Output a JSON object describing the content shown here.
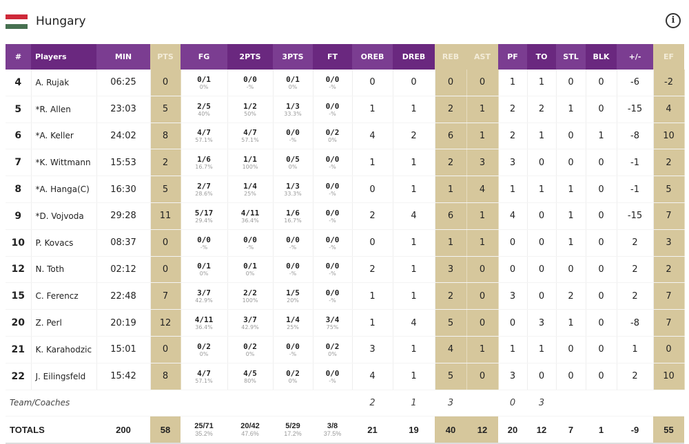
{
  "team": {
    "name": "Hungary",
    "flag_colors": [
      "#ce2939",
      "#ffffff",
      "#477050"
    ]
  },
  "columns": [
    "#",
    "Players",
    "MIN",
    "PTS",
    "FG",
    "2PTS",
    "3PTS",
    "FT",
    "OREB",
    "DREB",
    "REB",
    "AST",
    "PF",
    "TO",
    "STL",
    "BLK",
    "+/-",
    "EF"
  ],
  "players": [
    {
      "no": "4",
      "name": "A. Rujak",
      "min": "06:25",
      "pts": "0",
      "fg": [
        "0/1",
        "0%"
      ],
      "p2": [
        "0/0",
        "-%"
      ],
      "p3": [
        "0/1",
        "0%"
      ],
      "ft": [
        "0/0",
        "-%"
      ],
      "oreb": "0",
      "dreb": "0",
      "reb": "0",
      "ast": "0",
      "pf": "1",
      "to": "1",
      "stl": "0",
      "blk": "0",
      "pm": "-6",
      "ef": "-2"
    },
    {
      "no": "5",
      "name": "*R. Allen",
      "min": "23:03",
      "pts": "5",
      "fg": [
        "2/5",
        "40%"
      ],
      "p2": [
        "1/2",
        "50%"
      ],
      "p3": [
        "1/3",
        "33.3%"
      ],
      "ft": [
        "0/0",
        "-%"
      ],
      "oreb": "1",
      "dreb": "1",
      "reb": "2",
      "ast": "1",
      "pf": "2",
      "to": "2",
      "stl": "1",
      "blk": "0",
      "pm": "-15",
      "ef": "4"
    },
    {
      "no": "6",
      "name": "*A. Keller",
      "min": "24:02",
      "pts": "8",
      "fg": [
        "4/7",
        "57.1%"
      ],
      "p2": [
        "4/7",
        "57.1%"
      ],
      "p3": [
        "0/0",
        "-%"
      ],
      "ft": [
        "0/2",
        "0%"
      ],
      "oreb": "4",
      "dreb": "2",
      "reb": "6",
      "ast": "1",
      "pf": "2",
      "to": "1",
      "stl": "0",
      "blk": "1",
      "pm": "-8",
      "ef": "10"
    },
    {
      "no": "7",
      "name": "*K. Wittmann",
      "min": "15:53",
      "pts": "2",
      "fg": [
        "1/6",
        "16.7%"
      ],
      "p2": [
        "1/1",
        "100%"
      ],
      "p3": [
        "0/5",
        "0%"
      ],
      "ft": [
        "0/0",
        "-%"
      ],
      "oreb": "1",
      "dreb": "1",
      "reb": "2",
      "ast": "3",
      "pf": "3",
      "to": "0",
      "stl": "0",
      "blk": "0",
      "pm": "-1",
      "ef": "2"
    },
    {
      "no": "8",
      "name": "*A. Hanga(C)",
      "min": "16:30",
      "pts": "5",
      "fg": [
        "2/7",
        "28.6%"
      ],
      "p2": [
        "1/4",
        "25%"
      ],
      "p3": [
        "1/3",
        "33.3%"
      ],
      "ft": [
        "0/0",
        "-%"
      ],
      "oreb": "0",
      "dreb": "1",
      "reb": "1",
      "ast": "4",
      "pf": "1",
      "to": "1",
      "stl": "1",
      "blk": "0",
      "pm": "-1",
      "ef": "5"
    },
    {
      "no": "9",
      "name": "*D. Vojvoda",
      "min": "29:28",
      "pts": "11",
      "fg": [
        "5/17",
        "29.4%"
      ],
      "p2": [
        "4/11",
        "36.4%"
      ],
      "p3": [
        "1/6",
        "16.7%"
      ],
      "ft": [
        "0/0",
        "-%"
      ],
      "oreb": "2",
      "dreb": "4",
      "reb": "6",
      "ast": "1",
      "pf": "4",
      "to": "0",
      "stl": "1",
      "blk": "0",
      "pm": "-15",
      "ef": "7"
    },
    {
      "no": "10",
      "name": "P. Kovacs",
      "min": "08:37",
      "pts": "0",
      "fg": [
        "0/0",
        "-%"
      ],
      "p2": [
        "0/0",
        "-%"
      ],
      "p3": [
        "0/0",
        "-%"
      ],
      "ft": [
        "0/0",
        "-%"
      ],
      "oreb": "0",
      "dreb": "1",
      "reb": "1",
      "ast": "1",
      "pf": "0",
      "to": "0",
      "stl": "1",
      "blk": "0",
      "pm": "2",
      "ef": "3"
    },
    {
      "no": "12",
      "name": "N. Toth",
      "min": "02:12",
      "pts": "0",
      "fg": [
        "0/1",
        "0%"
      ],
      "p2": [
        "0/1",
        "0%"
      ],
      "p3": [
        "0/0",
        "-%"
      ],
      "ft": [
        "0/0",
        "-%"
      ],
      "oreb": "2",
      "dreb": "1",
      "reb": "3",
      "ast": "0",
      "pf": "0",
      "to": "0",
      "stl": "0",
      "blk": "0",
      "pm": "2",
      "ef": "2"
    },
    {
      "no": "15",
      "name": "C. Ferencz",
      "min": "22:48",
      "pts": "7",
      "fg": [
        "3/7",
        "42.9%"
      ],
      "p2": [
        "2/2",
        "100%"
      ],
      "p3": [
        "1/5",
        "20%"
      ],
      "ft": [
        "0/0",
        "-%"
      ],
      "oreb": "1",
      "dreb": "1",
      "reb": "2",
      "ast": "0",
      "pf": "3",
      "to": "0",
      "stl": "2",
      "blk": "0",
      "pm": "2",
      "ef": "7"
    },
    {
      "no": "20",
      "name": "Z. Perl",
      "min": "20:19",
      "pts": "12",
      "fg": [
        "4/11",
        "36.4%"
      ],
      "p2": [
        "3/7",
        "42.9%"
      ],
      "p3": [
        "1/4",
        "25%"
      ],
      "ft": [
        "3/4",
        "75%"
      ],
      "oreb": "1",
      "dreb": "4",
      "reb": "5",
      "ast": "0",
      "pf": "0",
      "to": "3",
      "stl": "1",
      "blk": "0",
      "pm": "-8",
      "ef": "7"
    },
    {
      "no": "21",
      "name": "K. Karahodzic",
      "min": "15:01",
      "pts": "0",
      "fg": [
        "0/2",
        "0%"
      ],
      "p2": [
        "0/2",
        "0%"
      ],
      "p3": [
        "0/0",
        "-%"
      ],
      "ft": [
        "0/2",
        "0%"
      ],
      "oreb": "3",
      "dreb": "1",
      "reb": "4",
      "ast": "1",
      "pf": "1",
      "to": "1",
      "stl": "0",
      "blk": "0",
      "pm": "1",
      "ef": "0"
    },
    {
      "no": "22",
      "name": "J. Eilingsfeld",
      "min": "15:42",
      "pts": "8",
      "fg": [
        "4/7",
        "57.1%"
      ],
      "p2": [
        "4/5",
        "80%"
      ],
      "p3": [
        "0/2",
        "0%"
      ],
      "ft": [
        "0/0",
        "-%"
      ],
      "oreb": "4",
      "dreb": "1",
      "reb": "5",
      "ast": "0",
      "pf": "3",
      "to": "0",
      "stl": "0",
      "blk": "0",
      "pm": "2",
      "ef": "10"
    }
  ],
  "team_row": {
    "label": "Team/Coaches",
    "oreb": "2",
    "dreb": "1",
    "reb": "3",
    "pf": "0",
    "to": "3"
  },
  "totals": {
    "label": "TOTALS",
    "min": "200",
    "pts": "58",
    "fg": [
      "25/71",
      "35.2%"
    ],
    "p2": [
      "20/42",
      "47.6%"
    ],
    "p3": [
      "5/29",
      "17.2%"
    ],
    "ft": [
      "3/8",
      "37.5%"
    ],
    "oreb": "21",
    "dreb": "19",
    "reb": "40",
    "ast": "12",
    "pf": "20",
    "to": "12",
    "stl": "7",
    "blk": "1",
    "pm": "-9",
    "ef": "55"
  }
}
